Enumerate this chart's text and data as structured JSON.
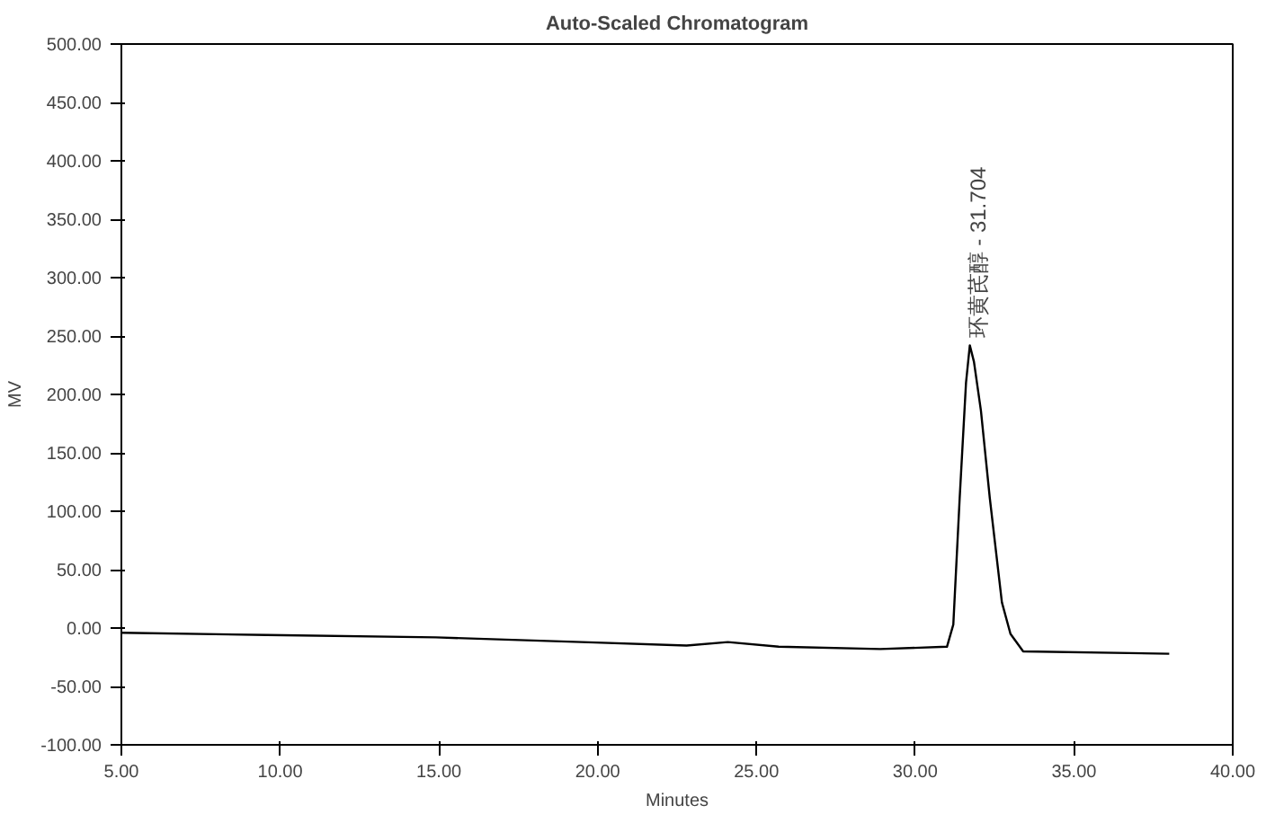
{
  "chart_data": {
    "type": "line",
    "title": "Auto-Scaled Chromatogram",
    "xlabel": "Minutes",
    "ylabel": "MV",
    "x": [
      5.0,
      9.6,
      14.9,
      19.5,
      22.8,
      24.1,
      25.7,
      28.9,
      31.0,
      31.2,
      31.4,
      31.6,
      31.72,
      31.85,
      32.07,
      32.35,
      32.73,
      33.0,
      33.4,
      38.0
    ],
    "series": [
      {
        "color": "#000000",
        "values": [
          -4,
          -6,
          -8,
          -12,
          -15,
          -12,
          -16,
          -18,
          -16,
          3,
          111,
          210,
          242,
          228,
          186,
          111,
          22,
          -5,
          -20,
          -22
        ]
      }
    ],
    "xlim": [
      5,
      40
    ],
    "ylim": [
      -100,
      500
    ],
    "xticks": [
      {
        "value": 5,
        "label": "5.00"
      },
      {
        "value": 10,
        "label": "10.00"
      },
      {
        "value": 15,
        "label": "15.00"
      },
      {
        "value": 20,
        "label": "20.00"
      },
      {
        "value": 25,
        "label": "25.00"
      },
      {
        "value": 30,
        "label": "30.00"
      },
      {
        "value": 35,
        "label": "35.00"
      },
      {
        "value": 40,
        "label": "40.00"
      }
    ],
    "yticks": [
      {
        "value": -100,
        "label": "-100.00"
      },
      {
        "value": -50,
        "label": "-50.00"
      },
      {
        "value": 0,
        "label": "0.00"
      },
      {
        "value": 50,
        "label": "50.00"
      },
      {
        "value": 100,
        "label": "100.00"
      },
      {
        "value": 150,
        "label": "150.00"
      },
      {
        "value": 200,
        "label": "200.00"
      },
      {
        "value": 250,
        "label": "250.00"
      },
      {
        "value": 300,
        "label": "300.00"
      },
      {
        "value": 350,
        "label": "350.00"
      },
      {
        "value": 400,
        "label": "400.00"
      },
      {
        "value": 450,
        "label": "450.00"
      },
      {
        "value": 500,
        "label": "500.00"
      }
    ],
    "annotations": [
      {
        "text": "环黄芪醇 - 31.704",
        "x": 31.704,
        "y": 242
      }
    ],
    "grid": false,
    "marker": "none",
    "line_style": "solid"
  }
}
